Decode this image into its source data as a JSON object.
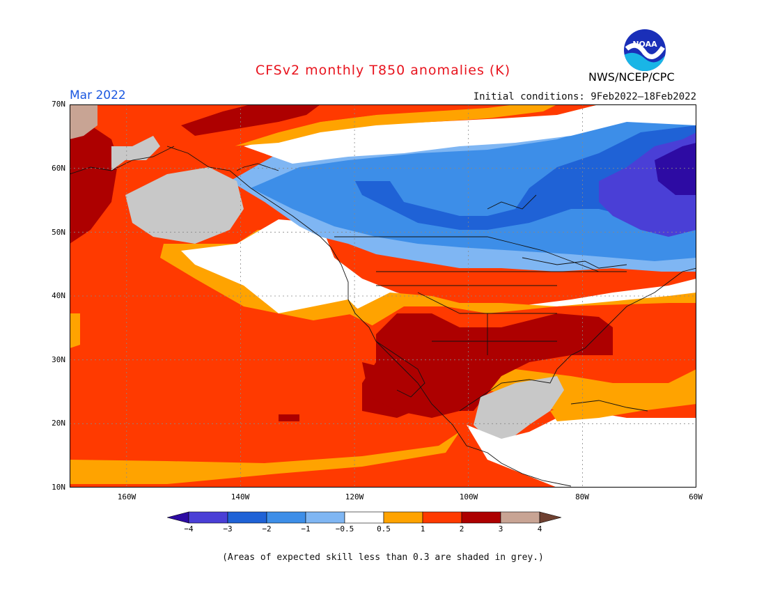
{
  "header": {
    "title": "CFSv2 monthly T850 anomalies (K)",
    "month": "Mar 2022",
    "initial_conditions": "Initial conditions: 9Feb2022–18Feb2022",
    "agency": "NWS/NCEP/CPC",
    "logo_text": "NOAA",
    "logo_icon": "noaa-logo-icon"
  },
  "map": {
    "lat_labels": [
      "70N",
      "60N",
      "50N",
      "40N",
      "30N",
      "20N",
      "10N"
    ],
    "lon_labels": [
      "160W",
      "140W",
      "120W",
      "100W",
      "80W",
      "60W"
    ],
    "lat_range": [
      10,
      70
    ],
    "lon_range": [
      -170,
      -60
    ],
    "grid": "dotted"
  },
  "legend": {
    "levels": [
      "−4",
      "−3",
      "−2",
      "−1",
      "−0.5",
      "0.5",
      "1",
      "2",
      "3",
      "4"
    ],
    "colors": [
      "#2d0ba3",
      "#4a3fd6",
      "#1f62d6",
      "#3d8ee8",
      "#7fb6f3",
      "#ffffff",
      "#ffa300",
      "#ff3a00",
      "#ad0000",
      "#c8a494",
      "#6e4030"
    ]
  },
  "colors": {
    "grey_skill": "#c8c8c8",
    "title": "#e8141e",
    "month": "#1a57e0"
  },
  "footnote": "(Areas of expected skill less than 0.3 are shaded in grey.)"
}
